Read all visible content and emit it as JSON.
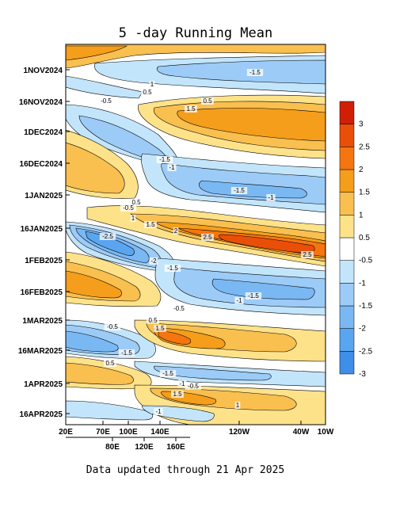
{
  "chart_data": {
    "type": "heatmap",
    "title": "5 -day Running Mean",
    "footer": "Data updated through 21 Apr 2025",
    "x_ticks_top": [
      "20E",
      "70E",
      "100E",
      "140E",
      "120W",
      "40W",
      "10W"
    ],
    "x_ticks_bottom": [
      "80E",
      "120E",
      "160E"
    ],
    "y_ticks": [
      "1NOV2024",
      "16NOV2024",
      "1DEC2024",
      "16DEC2024",
      "1JAN2025",
      "16JAN2025",
      "1FEB2025",
      "16FEB2025",
      "1MAR2025",
      "16MAR2025",
      "1APR2025",
      "16APR2025"
    ],
    "colorbar": {
      "colors": [
        "#3f8ee8",
        "#5aa5ef",
        "#7ab8f3",
        "#9ccbf7",
        "#c3e5fb",
        "#ffffff",
        "#fde28a",
        "#f9bf4f",
        "#f59e1b",
        "#f57510",
        "#e94f08",
        "#d01f05"
      ],
      "labels": [
        "3",
        "2.5",
        "2",
        "1.5",
        "1",
        "0.5",
        "-0.5",
        "-1",
        "-1.5",
        "-2",
        "-2.5",
        "-3"
      ]
    },
    "contour_labels": [
      "-1.5",
      "1",
      "0.5",
      "-0.5",
      "0.5",
      "1.5",
      "-1.5",
      "-1",
      "-1.5",
      "-1",
      "0.5",
      "-0.5",
      "1",
      "1.5",
      "2",
      "2.5",
      "-2.5",
      "2.5",
      "-2",
      "-1.5",
      "-1.5",
      "-1",
      "-0.5",
      "0.5",
      "1.5",
      "-0.5",
      "-1.5",
      "0.5",
      "-1.5",
      "-1",
      "-0.5",
      "1.5",
      "1",
      "-1"
    ]
  }
}
